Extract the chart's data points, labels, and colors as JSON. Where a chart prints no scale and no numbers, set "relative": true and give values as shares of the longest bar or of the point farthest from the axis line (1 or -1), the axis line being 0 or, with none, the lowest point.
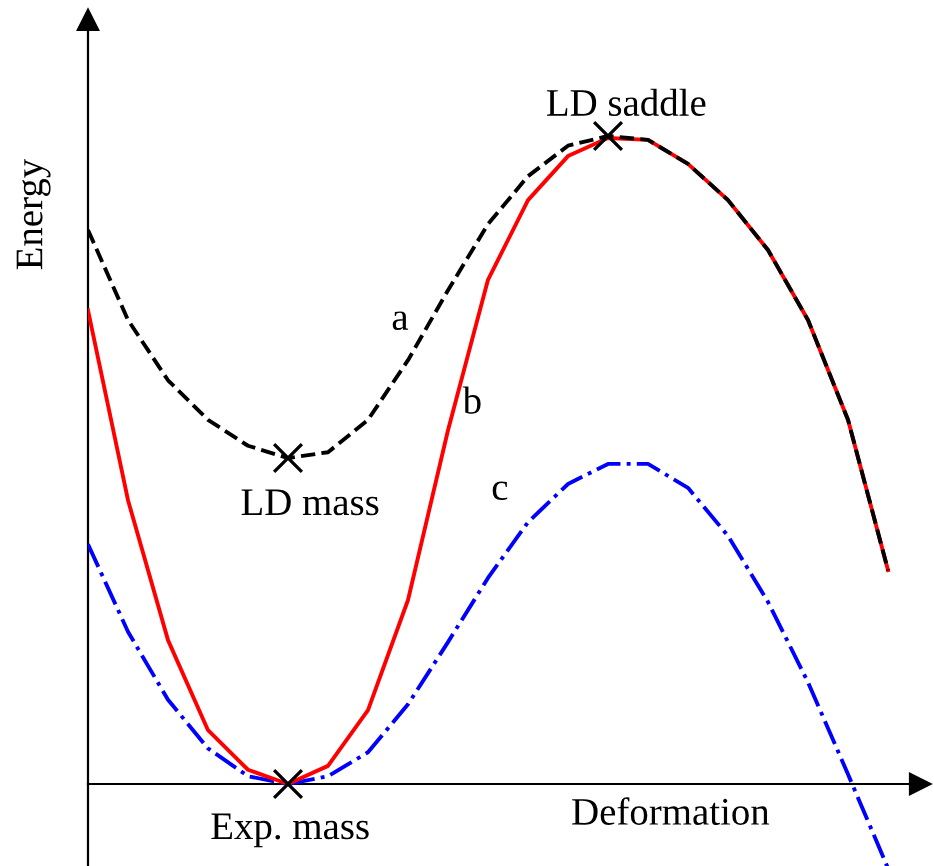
{
  "chart_data": {
    "type": "line",
    "relative": true,
    "xlabel": "Deformation",
    "ylabel": "Energy",
    "categories": [
      null,
      null,
      null,
      null,
      null,
      null,
      null,
      null,
      null,
      null,
      null,
      null,
      null,
      null,
      null,
      null,
      null,
      null,
      null,
      null,
      null
    ],
    "series": [
      {
        "color": "#000000",
        "line_style": "dashed",
        "values": [
          0.855,
          0.716,
          0.623,
          0.562,
          0.522,
          0.503,
          0.512,
          0.562,
          0.654,
          0.762,
          0.864,
          0.938,
          0.985,
          1.0,
          0.994,
          0.957,
          0.901,
          0.824,
          0.716,
          0.562,
          0.33
        ]
      },
      {
        "color": "#ff0000",
        "line_style": "solid",
        "values": [
          0.731,
          0.438,
          0.222,
          0.083,
          0.022,
          0.0,
          0.028,
          0.114,
          0.284,
          0.546,
          0.778,
          0.901,
          0.969,
          0.997,
          0.994,
          0.957,
          0.901,
          0.824,
          0.716,
          0.562,
          0.33
        ]
      },
      {
        "color": "#0000ff",
        "line_style": "dashdot",
        "values": [
          0.37,
          0.235,
          0.13,
          0.055,
          0.012,
          0.0,
          0.012,
          0.049,
          0.123,
          0.219,
          0.318,
          0.404,
          0.463,
          0.494,
          0.494,
          0.457,
          0.383,
          0.281,
          0.157,
          0.015,
          -0.13
        ]
      }
    ],
    "annotations": [
      "LD saddle",
      "LD mass",
      "Exp. mass",
      "a",
      "b",
      "c"
    ],
    "legend": false
  }
}
